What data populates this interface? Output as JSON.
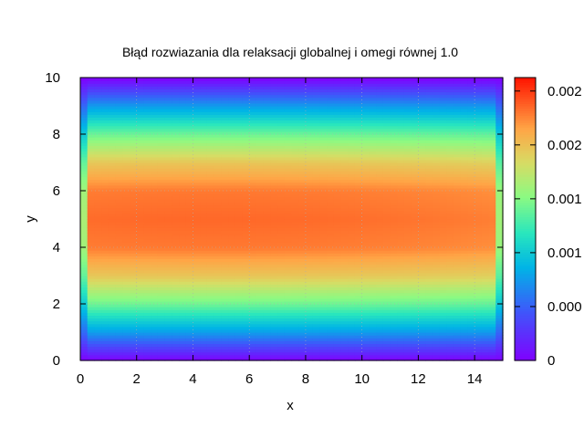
{
  "chart_data": {
    "type": "heatmap",
    "title": "Błąd rozwiazania dla relaksacji globalnej i omegi równej 1.0",
    "xlabel": "x",
    "ylabel": "y",
    "xlim": [
      0,
      15
    ],
    "ylim": [
      0,
      10
    ],
    "x_ticks": [
      "0",
      "2",
      "4",
      "6",
      "8",
      "10",
      "12",
      "14"
    ],
    "y_ticks": [
      "0",
      "2",
      "4",
      "6",
      "8",
      "10"
    ],
    "colorbar": {
      "range": [
        0,
        0.0024
      ],
      "tick_labels": [
        "0",
        "0.000",
        "0.001",
        "0.001",
        "0.002",
        "0.002"
      ]
    },
    "colormap": "rainbow",
    "grid": true,
    "field": {
      "description_peak_value": 0.00215,
      "peak_location": [
        4.5,
        5.0
      ],
      "profile_y": [
        0,
        1,
        2,
        3,
        4,
        5,
        6,
        7,
        8,
        9,
        10
      ],
      "profile_values_at_x_mid": [
        0.0,
        0.0007,
        0.0013,
        0.0018,
        0.0021,
        0.00215,
        0.0021,
        0.0018,
        0.0013,
        0.0007,
        0.0
      ]
    }
  }
}
